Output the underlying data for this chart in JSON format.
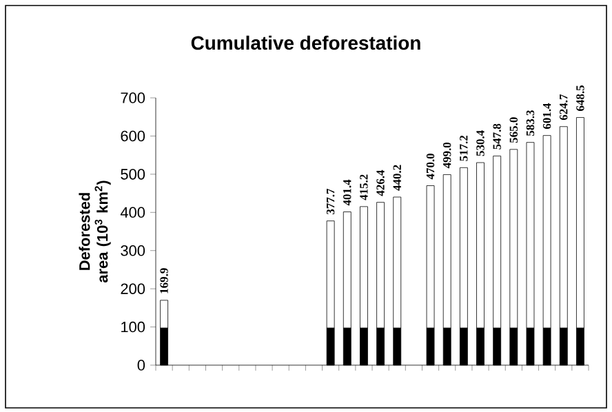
{
  "chart_data": {
    "type": "bar",
    "title": "Cumulative deforestation",
    "ylabel": "Deforested area (10$^{3}$ km$^{2}$)",
    "categories": [
      null,
      null,
      null,
      null,
      null,
      null,
      null,
      null,
      null,
      null,
      null,
      null,
      null,
      null,
      null,
      null,
      null,
      null,
      null,
      null,
      null,
      null,
      null,
      null,
      null,
      null
    ],
    "stacked": true,
    "series": [
      {
        "color": "#000000",
        "values": [
          97,
          null,
          null,
          null,
          null,
          null,
          null,
          null,
          null,
          null,
          97,
          97,
          97,
          97,
          97,
          null,
          97,
          97,
          97,
          97,
          97,
          97,
          97,
          97,
          97,
          97
        ]
      },
      {
        "color": "#ffffff",
        "values": [
          72.9,
          null,
          null,
          null,
          null,
          null,
          null,
          null,
          null,
          null,
          280.7,
          304.4,
          318.2,
          329.4,
          343.2,
          null,
          373.0,
          402.0,
          420.2,
          433.4,
          450.8,
          468.0,
          486.3,
          504.4,
          527.7,
          551.5
        ]
      }
    ],
    "totals": [
      "169.9",
      null,
      null,
      null,
      null,
      null,
      null,
      null,
      null,
      null,
      "377.7",
      "401.4",
      "415.2",
      "426.4",
      "440.2",
      null,
      "470.0",
      "499.0",
      "517.2",
      "530.4",
      "547.8",
      "565.0",
      "583.3",
      "601.4",
      "624.7",
      "648.5"
    ],
    "ylim": [
      0,
      700
    ],
    "yticks": [
      0,
      100,
      200,
      300,
      400,
      500,
      600,
      700
    ]
  }
}
